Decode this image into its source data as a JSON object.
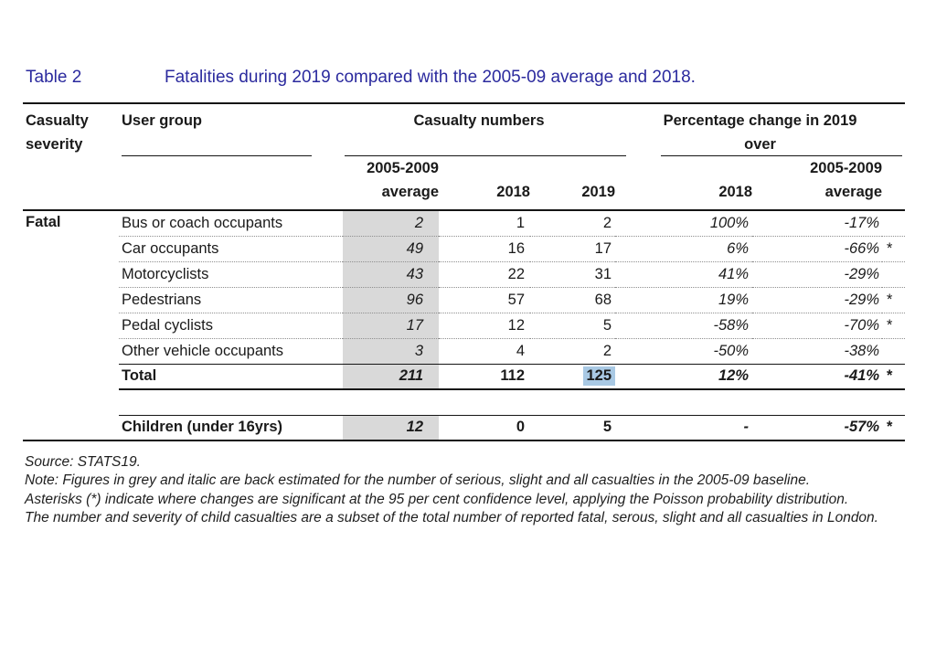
{
  "title": {
    "label": "Table 2",
    "text": "Fatalities during 2019 compared with the 2005-09 average and 2018."
  },
  "colors": {
    "title_blue": "#2b2a9e",
    "grey_band": "#d9d9d9",
    "selection_highlight": "#a9c9e4"
  },
  "table": {
    "headers": {
      "severity": "Casualty severity",
      "user_group": "User group",
      "casualty_numbers": "Casualty numbers",
      "pct_change_line1": "Percentage change in 2019",
      "pct_change_line2": "over",
      "sub_avg": [
        "2005-2009",
        "average"
      ],
      "sub_2018": "2018",
      "sub_2019": "2019",
      "sub_pct_2018": "2018",
      "sub_pct_avg": [
        "2005-2009",
        "average"
      ]
    },
    "rows": [
      {
        "severity": "Fatal",
        "group": "Bus or coach occupants",
        "avg": "2",
        "n2018": "1",
        "n2019": "2",
        "p2018": "100%",
        "pavg": "-17%",
        "sig": ""
      },
      {
        "group": "Car occupants",
        "avg": "49",
        "n2018": "16",
        "n2019": "17",
        "p2018": "6%",
        "pavg": "-66%",
        "sig": "*"
      },
      {
        "group": "Motorcyclists",
        "avg": "43",
        "n2018": "22",
        "n2019": "31",
        "p2018": "41%",
        "pavg": "-29%",
        "sig": ""
      },
      {
        "group": "Pedestrians",
        "avg": "96",
        "n2018": "57",
        "n2019": "68",
        "p2018": "19%",
        "pavg": "-29%",
        "sig": "*"
      },
      {
        "group": "Pedal cyclists",
        "avg": "17",
        "n2018": "12",
        "n2019": "5",
        "p2018": "-58%",
        "pavg": "-70%",
        "sig": "*"
      },
      {
        "group": "Other vehicle occupants",
        "avg": "3",
        "n2018": "4",
        "n2019": "2",
        "p2018": "-50%",
        "pavg": "-38%",
        "sig": ""
      }
    ],
    "total_row": {
      "group": "Total",
      "avg": "211",
      "n2018": "112",
      "n2019": "125",
      "p2018": "12%",
      "pavg": "-41%",
      "sig": "*"
    },
    "children_row": {
      "group": "Children (under 16yrs)",
      "avg": "12",
      "n2018": "0",
      "n2019": "5",
      "p2018": "-",
      "pavg": "-57%",
      "sig": "*"
    }
  },
  "notes": [
    "Source: STATS19.",
    "Note: Figures in grey and italic are back estimated for the number of serious, slight and all casualties in the 2005-09 baseline.",
    "Asterisks (*) indicate where changes are significant at the 95 per cent confidence level, applying the Poisson probability distribution.",
    "The number and severity of child casualties are a subset of the total number of reported fatal, serous, slight and all casualties in London."
  ]
}
